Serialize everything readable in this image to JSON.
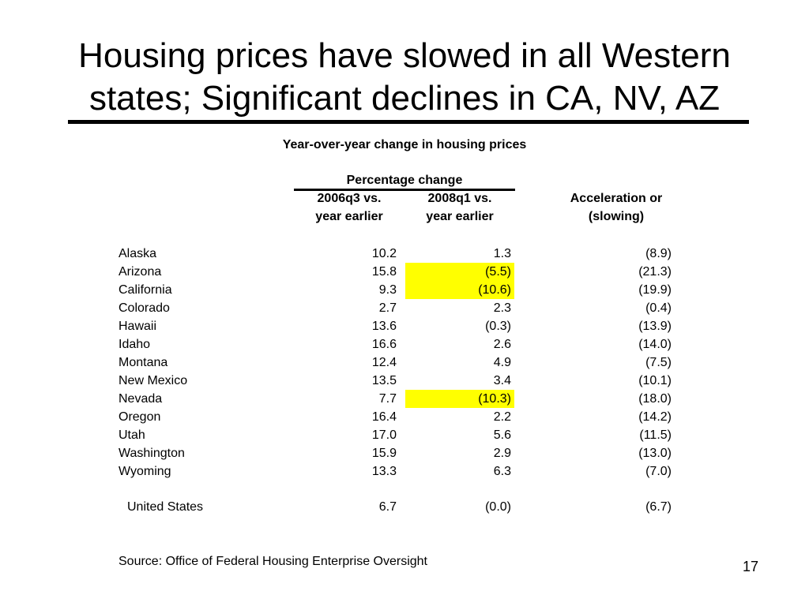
{
  "slide": {
    "title_line1": "Housing prices  have slowed in all Western",
    "title_line2": "states; Significant declines in CA, NV, AZ",
    "page_number": "17",
    "source": "Source: Office of Federal Housing Enterprise Oversight"
  },
  "table": {
    "title": "Year-over-year change in housing prices",
    "group_header": "Percentage change",
    "col1_line1": "2006q3 vs.",
    "col1_line2": "year earlier",
    "col2_line1": "2008q1 vs.",
    "col2_line2": "year earlier",
    "col3_line1": "Acceleration or",
    "col3_line2": "(slowing)",
    "highlight_color": "#ffff00",
    "rows": [
      {
        "state": "Alaska",
        "v2006q3": "10.2",
        "v2008q1": "1.3",
        "accel": "(8.9)",
        "highlight": false
      },
      {
        "state": "Arizona",
        "v2006q3": "15.8",
        "v2008q1": "(5.5)",
        "accel": "(21.3)",
        "highlight": true
      },
      {
        "state": "California",
        "v2006q3": "9.3",
        "v2008q1": "(10.6)",
        "accel": "(19.9)",
        "highlight": true
      },
      {
        "state": "Colorado",
        "v2006q3": "2.7",
        "v2008q1": "2.3",
        "accel": "(0.4)",
        "highlight": false
      },
      {
        "state": "Hawaii",
        "v2006q3": "13.6",
        "v2008q1": "(0.3)",
        "accel": "(13.9)",
        "highlight": false
      },
      {
        "state": "Idaho",
        "v2006q3": "16.6",
        "v2008q1": "2.6",
        "accel": "(14.0)",
        "highlight": false
      },
      {
        "state": "Montana",
        "v2006q3": "12.4",
        "v2008q1": "4.9",
        "accel": "(7.5)",
        "highlight": false
      },
      {
        "state": "New Mexico",
        "v2006q3": "13.5",
        "v2008q1": "3.4",
        "accel": "(10.1)",
        "highlight": false
      },
      {
        "state": "Nevada",
        "v2006q3": "7.7",
        "v2008q1": "(10.3)",
        "accel": "(18.0)",
        "highlight": true
      },
      {
        "state": "Oregon",
        "v2006q3": "16.4",
        "v2008q1": "2.2",
        "accel": "(14.2)",
        "highlight": false
      },
      {
        "state": "Utah",
        "v2006q3": "17.0",
        "v2008q1": "5.6",
        "accel": "(11.5)",
        "highlight": false
      },
      {
        "state": "Washington",
        "v2006q3": "15.9",
        "v2008q1": "2.9",
        "accel": "(13.0)",
        "highlight": false
      },
      {
        "state": "Wyoming",
        "v2006q3": "13.3",
        "v2008q1": "6.3",
        "accel": "(7.0)",
        "highlight": false
      }
    ],
    "total": {
      "state": "United States",
      "v2006q3": "6.7",
      "v2008q1": "(0.0)",
      "accel": "(6.7)"
    }
  }
}
